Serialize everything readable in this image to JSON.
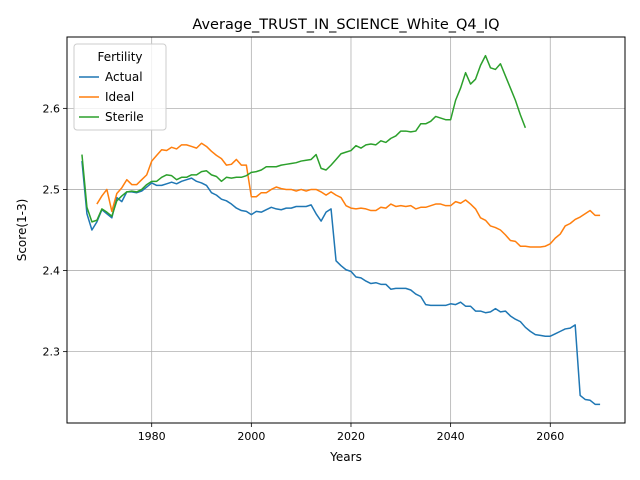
{
  "chart_data": {
    "type": "line",
    "title": "Average_TRUST_IN_SCIENCE_White_Q4_IQ",
    "xlabel": "Years",
    "ylabel": "Score(1-3)",
    "xlim": [
      1963,
      2075
    ],
    "ylim": [
      2.212,
      2.688
    ],
    "xticks": [
      1980,
      2000,
      2020,
      2040,
      2060
    ],
    "yticks": [
      2.3,
      2.4,
      2.5,
      2.6
    ],
    "ytick_labels": [
      "2.3",
      "2.4",
      "2.5",
      "2.6"
    ],
    "grid": true,
    "legend": {
      "title": "Fertility",
      "placement": "upper-left"
    },
    "series": [
      {
        "name": "Actual",
        "color": "#1f77b4",
        "x": [
          1966,
          1967,
          1968,
          1969,
          1970,
          1971,
          1972,
          1973,
          1974,
          1975,
          1976,
          1977,
          1978,
          1979,
          1980,
          1981,
          1982,
          1983,
          1984,
          1985,
          1986,
          1987,
          1988,
          1989,
          1990,
          1991,
          1992,
          1993,
          1994,
          1995,
          1996,
          1997,
          1998,
          1999,
          2000,
          2001,
          2002,
          2003,
          2004,
          2005,
          2006,
          2007,
          2008,
          2009,
          2010,
          2011,
          2012,
          2013,
          2014,
          2015,
          2016,
          2017,
          2018,
          2019,
          2020,
          2021,
          2022,
          2023,
          2024,
          2025,
          2026,
          2027,
          2028,
          2029,
          2030,
          2031,
          2032,
          2033,
          2034,
          2035,
          2036,
          2037,
          2038,
          2039,
          2040,
          2041,
          2042,
          2043,
          2044,
          2045,
          2046,
          2047,
          2048,
          2049,
          2050,
          2051,
          2052,
          2053,
          2054,
          2055,
          2056,
          2057,
          2058,
          2059,
          2060,
          2061,
          2062,
          2063,
          2064,
          2065,
          2066,
          2067,
          2068,
          2069,
          2070
        ],
        "y": [
          2.535,
          2.47,
          2.45,
          2.46,
          2.475,
          2.47,
          2.465,
          2.49,
          2.485,
          2.497,
          2.497,
          2.496,
          2.498,
          2.503,
          2.508,
          2.505,
          2.505,
          2.507,
          2.509,
          2.507,
          2.51,
          2.512,
          2.514,
          2.51,
          2.508,
          2.505,
          2.496,
          2.493,
          2.488,
          2.486,
          2.482,
          2.477,
          2.474,
          2.473,
          2.469,
          2.473,
          2.472,
          2.475,
          2.478,
          2.476,
          2.475,
          2.477,
          2.477,
          2.479,
          2.479,
          2.479,
          2.481,
          2.47,
          2.461,
          2.472,
          2.476,
          2.412,
          2.406,
          2.401,
          2.399,
          2.392,
          2.391,
          2.387,
          2.384,
          2.385,
          2.383,
          2.383,
          2.377,
          2.378,
          2.378,
          2.378,
          2.376,
          2.371,
          2.368,
          2.358,
          2.357,
          2.357,
          2.357,
          2.357,
          2.359,
          2.358,
          2.361,
          2.356,
          2.356,
          2.35,
          2.35,
          2.348,
          2.349,
          2.353,
          2.349,
          2.35,
          2.344,
          2.34,
          2.337,
          2.33,
          2.325,
          2.321,
          2.32,
          2.319,
          2.319,
          2.322,
          2.325,
          2.328,
          2.329,
          2.333,
          2.246,
          2.241,
          2.24,
          2.235,
          2.235
        ]
      },
      {
        "name": "Ideal",
        "color": "#ff7f0e",
        "x": [
          1969,
          1970,
          1971,
          1972,
          1973,
          1974,
          1975,
          1976,
          1977,
          1978,
          1979,
          1980,
          1981,
          1982,
          1983,
          1984,
          1985,
          1986,
          1987,
          1988,
          1989,
          1990,
          1991,
          1992,
          1993,
          1994,
          1995,
          1996,
          1997,
          1998,
          1999,
          2000,
          2001,
          2002,
          2003,
          2004,
          2005,
          2006,
          2007,
          2008,
          2009,
          2010,
          2011,
          2012,
          2013,
          2014,
          2015,
          2016,
          2017,
          2018,
          2019,
          2020,
          2021,
          2022,
          2023,
          2024,
          2025,
          2026,
          2027,
          2028,
          2029,
          2030,
          2031,
          2032,
          2033,
          2034,
          2035,
          2036,
          2037,
          2038,
          2039,
          2040,
          2041,
          2042,
          2043,
          2044,
          2045,
          2046,
          2047,
          2048,
          2049,
          2050,
          2051,
          2052,
          2053,
          2054,
          2055,
          2056,
          2057,
          2058,
          2059,
          2060,
          2061,
          2062,
          2063,
          2064,
          2065,
          2066,
          2067,
          2068,
          2069,
          2070
        ],
        "y": [
          2.482,
          2.492,
          2.5,
          2.473,
          2.495,
          2.502,
          2.512,
          2.506,
          2.506,
          2.512,
          2.518,
          2.535,
          2.542,
          2.549,
          2.548,
          2.552,
          2.55,
          2.555,
          2.555,
          2.553,
          2.551,
          2.557,
          2.553,
          2.547,
          2.542,
          2.538,
          2.53,
          2.531,
          2.537,
          2.53,
          2.53,
          2.491,
          2.491,
          2.496,
          2.496,
          2.5,
          2.503,
          2.501,
          2.5,
          2.5,
          2.498,
          2.5,
          2.498,
          2.5,
          2.5,
          2.497,
          2.493,
          2.497,
          2.493,
          2.49,
          2.48,
          2.477,
          2.476,
          2.477,
          2.476,
          2.474,
          2.474,
          2.478,
          2.477,
          2.482,
          2.479,
          2.48,
          2.479,
          2.48,
          2.476,
          2.478,
          2.478,
          2.48,
          2.482,
          2.482,
          2.48,
          2.48,
          2.485,
          2.483,
          2.487,
          2.482,
          2.476,
          2.465,
          2.462,
          2.455,
          2.453,
          2.45,
          2.444,
          2.437,
          2.436,
          2.43,
          2.43,
          2.429,
          2.429,
          2.429,
          2.43,
          2.433,
          2.44,
          2.445,
          2.455,
          2.458,
          2.463,
          2.466,
          2.47,
          2.474,
          2.468,
          2.468
        ]
      },
      {
        "name": "Sterile",
        "color": "#2ca02c",
        "x": [
          1966,
          1967,
          1968,
          1969,
          1970,
          1971,
          1972,
          1973,
          1974,
          1975,
          1976,
          1977,
          1978,
          1979,
          1980,
          1981,
          1982,
          1983,
          1984,
          1985,
          1986,
          1987,
          1988,
          1989,
          1990,
          1991,
          1992,
          1993,
          1994,
          1995,
          1996,
          1997,
          1998,
          1999,
          2000,
          2001,
          2002,
          2003,
          2004,
          2005,
          2006,
          2007,
          2008,
          2009,
          2010,
          2011,
          2012,
          2013,
          2014,
          2015,
          2016,
          2017,
          2018,
          2019,
          2020,
          2021,
          2022,
          2023,
          2024,
          2025,
          2026,
          2027,
          2028,
          2029,
          2030,
          2031,
          2032,
          2033,
          2034,
          2035,
          2036,
          2037,
          2038,
          2039,
          2040,
          2041,
          2042,
          2043,
          2044,
          2045,
          2046,
          2047,
          2048,
          2049,
          2050,
          2051,
          2052,
          2053,
          2054,
          2055
        ],
        "y": [
          2.543,
          2.478,
          2.46,
          2.462,
          2.476,
          2.472,
          2.467,
          2.486,
          2.492,
          2.497,
          2.498,
          2.497,
          2.5,
          2.506,
          2.51,
          2.51,
          2.515,
          2.518,
          2.517,
          2.512,
          2.515,
          2.515,
          2.518,
          2.518,
          2.522,
          2.523,
          2.518,
          2.516,
          2.51,
          2.515,
          2.514,
          2.515,
          2.515,
          2.517,
          2.521,
          2.522,
          2.524,
          2.528,
          2.528,
          2.528,
          2.53,
          2.531,
          2.532,
          2.533,
          2.535,
          2.536,
          2.537,
          2.543,
          2.526,
          2.524,
          2.53,
          2.537,
          2.544,
          2.546,
          2.548,
          2.554,
          2.551,
          2.555,
          2.556,
          2.555,
          2.56,
          2.558,
          2.563,
          2.566,
          2.572,
          2.572,
          2.571,
          2.572,
          2.581,
          2.581,
          2.584,
          2.59,
          2.588,
          2.586,
          2.586,
          2.61,
          2.625,
          2.644,
          2.63,
          2.636,
          2.653,
          2.665,
          2.65,
          2.648,
          2.655,
          2.64,
          2.625,
          2.61,
          2.592,
          2.576
        ]
      }
    ]
  }
}
